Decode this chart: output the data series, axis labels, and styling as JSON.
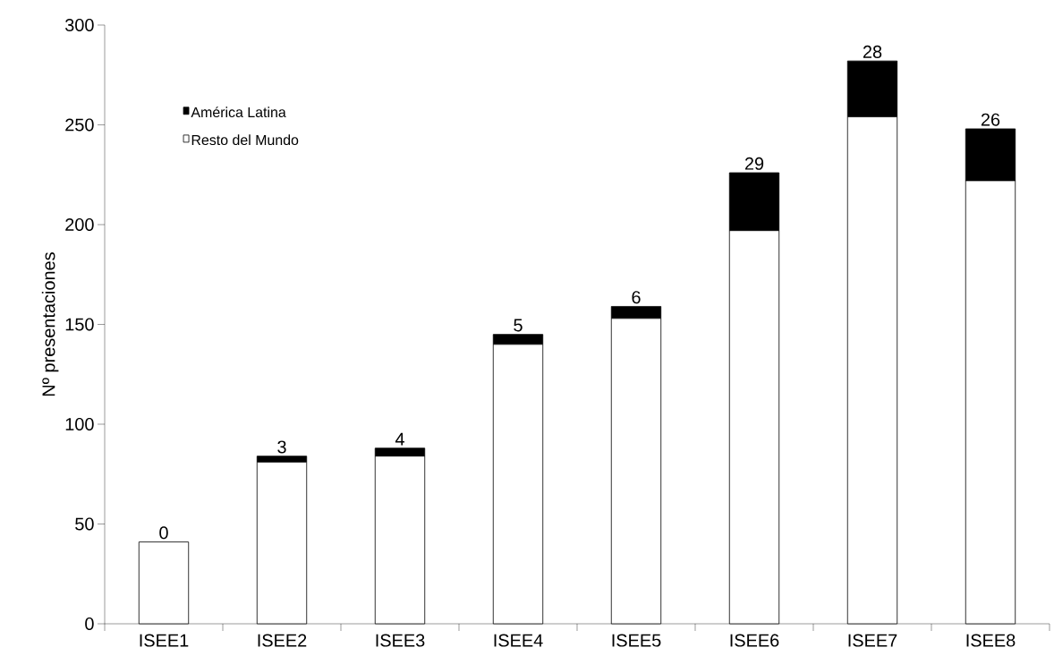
{
  "chart_data": {
    "type": "bar",
    "stacked": true,
    "ylabel": "Nº presentaciones",
    "categories": [
      "ISEE1",
      "ISEE2",
      "ISEE3",
      "ISEE4",
      "ISEE5",
      "ISEE6",
      "ISEE7",
      "ISEE8"
    ],
    "series": [
      {
        "name": "Resto del Mundo",
        "color": "#ffffff",
        "values": [
          41,
          81,
          84,
          140,
          153,
          197,
          254,
          222
        ]
      },
      {
        "name": "América Latina",
        "color": "#000000",
        "values": [
          0,
          3,
          4,
          5,
          6,
          29,
          28,
          26
        ],
        "value_labels": [
          "0",
          "3",
          "4",
          "5",
          "6",
          "29",
          "28",
          "26"
        ]
      }
    ],
    "ylim": [
      0,
      300
    ],
    "yticks": [
      0,
      50,
      100,
      150,
      200,
      250,
      300
    ],
    "legend": "top left",
    "grid": false
  }
}
